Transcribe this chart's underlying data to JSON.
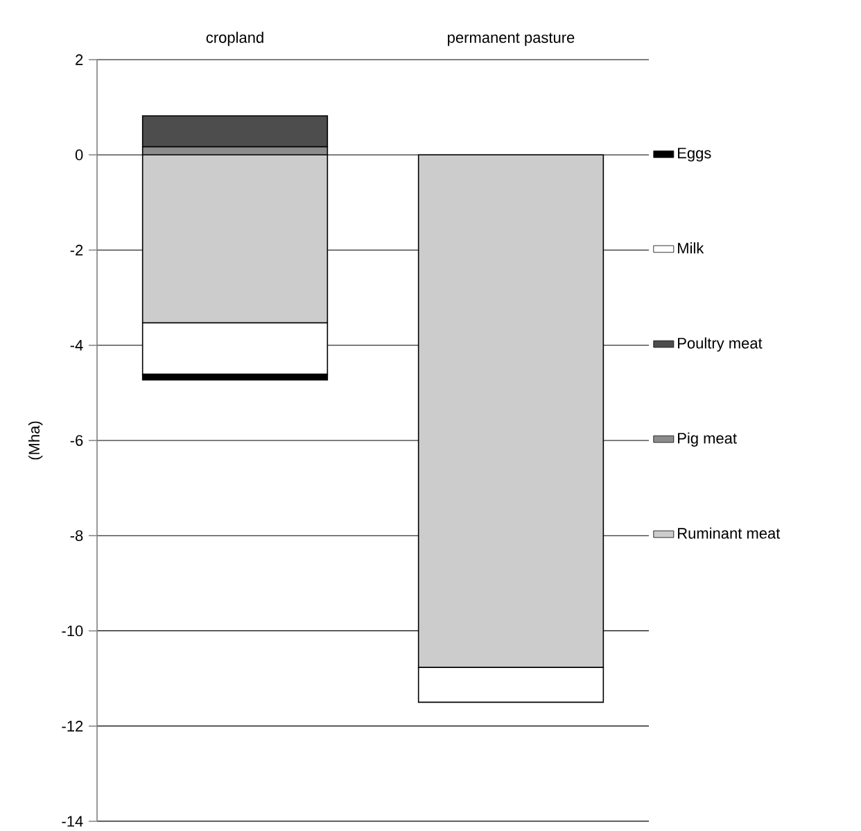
{
  "chart_data": {
    "type": "bar",
    "stacked": true,
    "ylabel": "(Mha)",
    "categories": [
      "cropland",
      "permanent pasture"
    ],
    "series": [
      {
        "name": "Ruminant meat",
        "color": "#cccccc",
        "values": [
          -3.53,
          -10.77
        ]
      },
      {
        "name": "Pig meat",
        "color": "#8c8c8c",
        "values": [
          0.17,
          0
        ]
      },
      {
        "name": "Poultry meat",
        "color": "#4d4d4d",
        "values": [
          0.65,
          0
        ]
      },
      {
        "name": "Milk",
        "color": "#ffffff",
        "values": [
          -1.08,
          -0.73
        ]
      },
      {
        "name": "Eggs",
        "color": "#000000",
        "values": [
          -0.12,
          0
        ]
      }
    ],
    "ylim": [
      -14,
      2
    ],
    "yticks": [
      -14,
      -12,
      -10,
      -8,
      -6,
      -4,
      -2,
      0,
      2
    ],
    "grid": "y",
    "legend": "right"
  }
}
